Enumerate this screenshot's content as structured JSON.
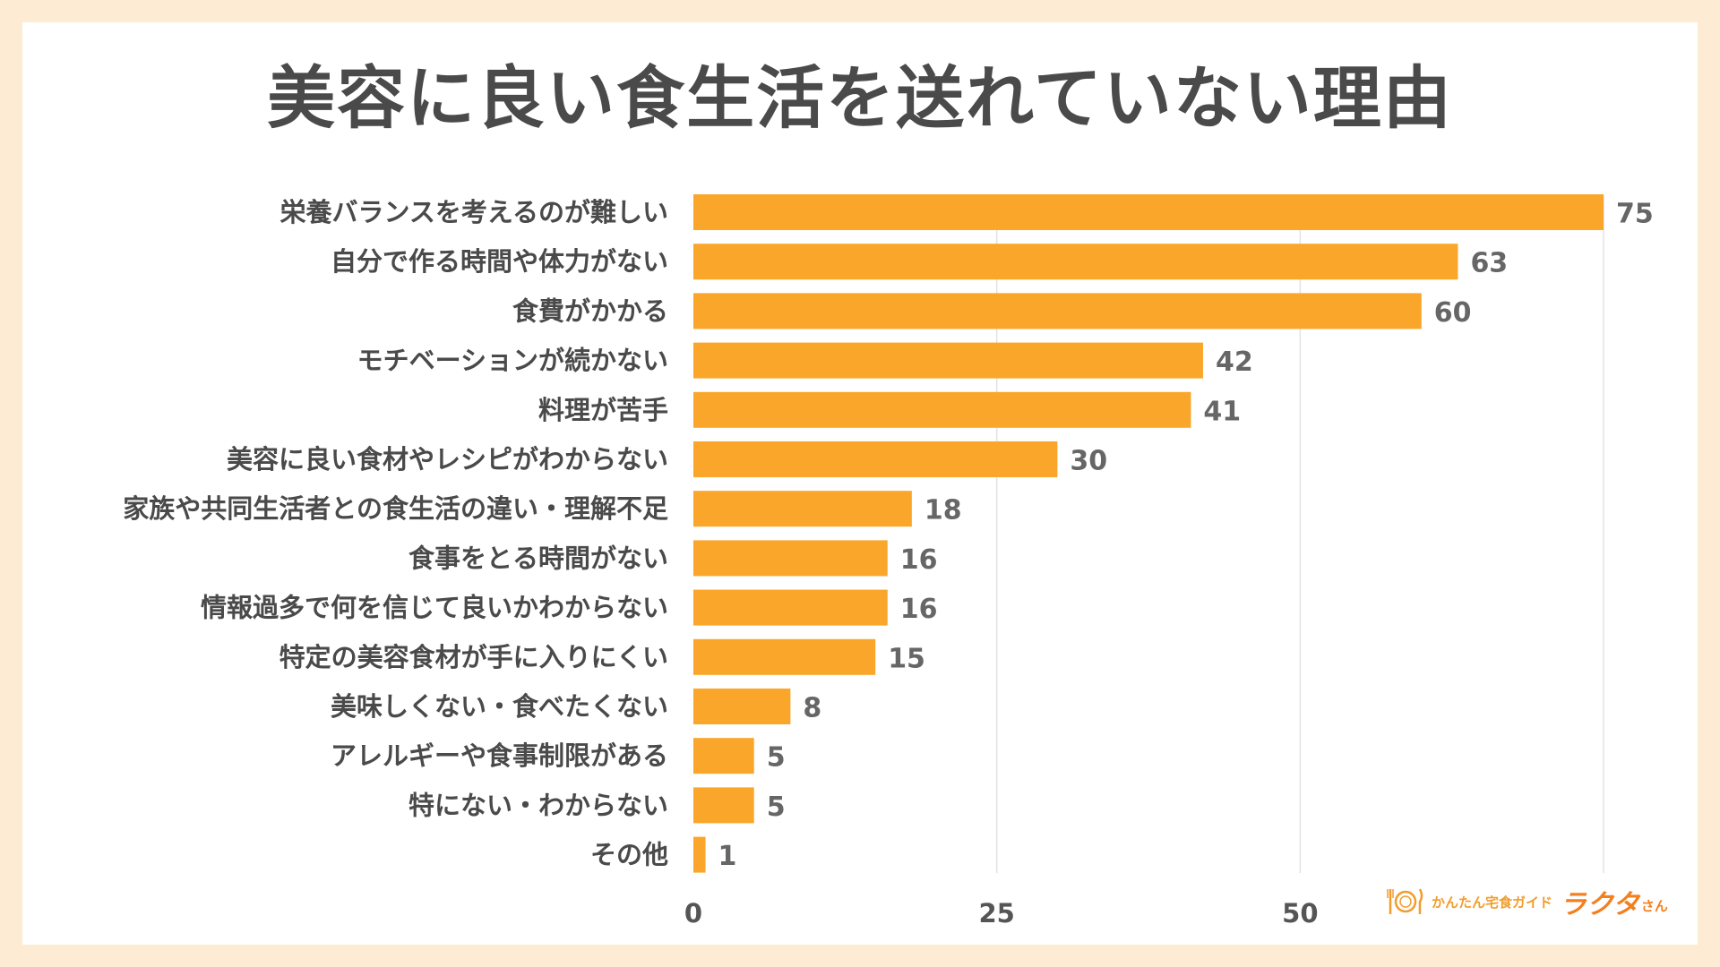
{
  "chart_data": {
    "type": "bar",
    "orientation": "horizontal",
    "title": "美容に良い食生活を送れていない理由",
    "categories": [
      "栄養バランスを考えるのが難しい",
      "自分で作る時間や体力がない",
      "食費がかかる",
      "モチベーションが続かない",
      "料理が苦手",
      "美容に良い食材やレシピがわからない",
      "家族や共同生活者との食生活の違い・理解不足",
      "食事をとる時間がない",
      "情報過多で何を信じて良いかわからない",
      "特定の美容食材が手に入りにくい",
      "美味しくない・食べたくない",
      "アレルギーや食事制限がある",
      "特にない・わからない",
      "その他"
    ],
    "values": [
      75,
      63,
      60,
      42,
      41,
      30,
      18,
      16,
      16,
      15,
      8,
      5,
      5,
      1
    ],
    "xticks": [
      "0",
      "25",
      "50"
    ],
    "xlim": [
      0,
      75
    ],
    "xlabel": "",
    "ylabel": "",
    "grid": true,
    "bar_color": "#faa62b",
    "grid_color": "#e3e3e3"
  },
  "brand": {
    "tagline": "かんたん宅食ガイド",
    "name": "ラクタ",
    "suffix": "さん",
    "logo_icon": "plate-cutlery-icon",
    "accent": "#f2801f"
  }
}
